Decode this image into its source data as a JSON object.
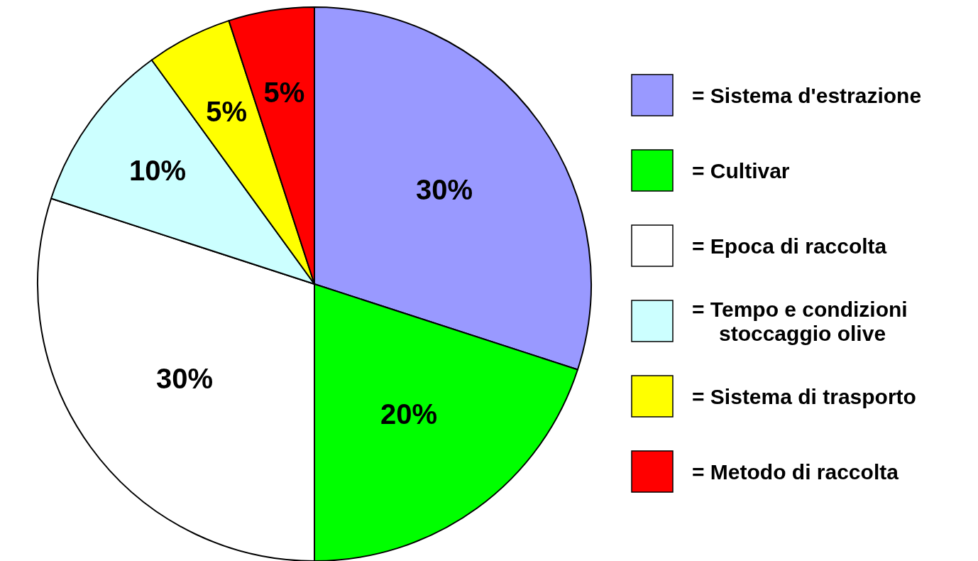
{
  "chart_data": {
    "type": "pie",
    "categories": [
      "= Sistema d'estrazione",
      "= Cultivar",
      "= Epoca di raccolta",
      "= Tempo e condizioni stoccaggio olive",
      "= Sistema di trasporto",
      "= Metodo di raccolta"
    ],
    "values": [
      30,
      20,
      30,
      10,
      5,
      5
    ],
    "colors": [
      "#9999ff",
      "#00ff00",
      "#ffffff",
      "#ccffff",
      "#ffff00",
      "#ff0000"
    ],
    "value_labels": [
      "30%",
      "20%",
      "30%",
      "10%",
      "5%",
      "5%"
    ],
    "legend": "right"
  }
}
